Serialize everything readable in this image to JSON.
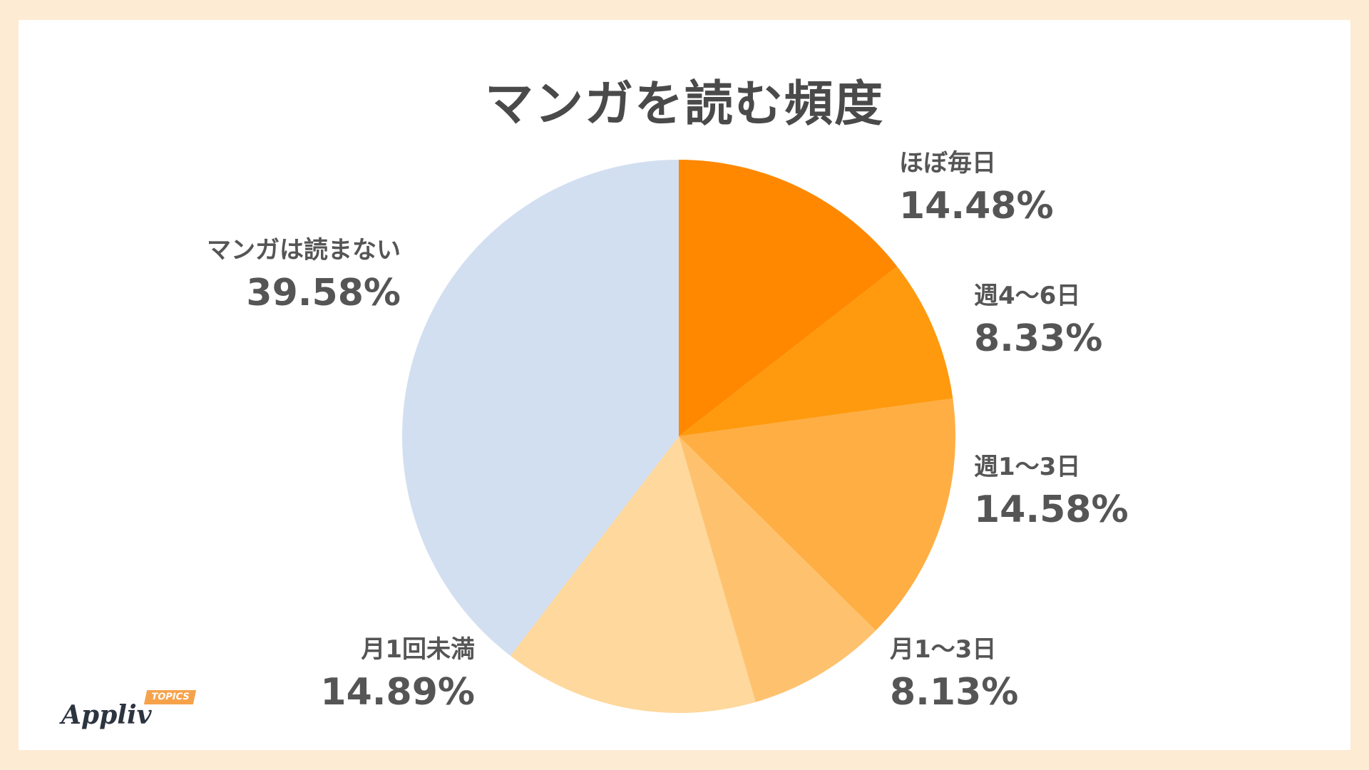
{
  "chart_data": {
    "type": "pie",
    "title": "マンガを読む頻度",
    "start_angle_deg": 0,
    "direction": "clockwise",
    "slices": [
      {
        "label": "ほぼ毎日",
        "value": 14.48,
        "value_label": "14.48%",
        "color": "#ff8800"
      },
      {
        "label": "週4〜6日",
        "value": 8.33,
        "value_label": "8.33%",
        "color": "#ff9a0e"
      },
      {
        "label": "週1〜3日",
        "value": 14.58,
        "value_label": "14.58%",
        "color": "#ffae44"
      },
      {
        "label": "月1〜3日",
        "value": 8.13,
        "value_label": "8.13%",
        "color": "#fec26f"
      },
      {
        "label": "月1回未満",
        "value": 14.89,
        "value_label": "14.89%",
        "color": "#fed89c"
      },
      {
        "label": "マンガは読まない",
        "value": 39.58,
        "value_label": "39.58%",
        "color": "#d2dff0"
      }
    ]
  },
  "branding": {
    "logo_text": "Appliv",
    "logo_badge": "TOPICS"
  }
}
